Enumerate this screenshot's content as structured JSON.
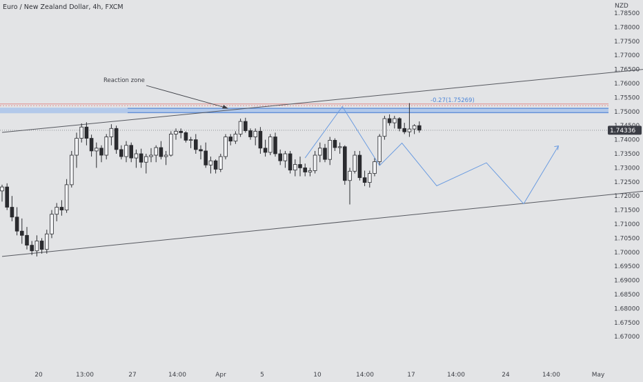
{
  "chart_title": "Euro / New Zealand Dollar, 4h, FXCM",
  "currency": "NZD",
  "colors": {
    "background": "#e3e4e6",
    "candle": "#2a2b2f",
    "zone_fill": "#aac4ea",
    "zone_edge": "#4a7fd1",
    "projection": "#6a9be0",
    "fib_label": "#4e86d8",
    "red_line": "#e07a7a",
    "price_box": "#3b3d45",
    "trendline": "#55575e"
  },
  "chart_data": {
    "type": "candlestick",
    "title": "Euro / New Zealand Dollar, 4h, FXCM",
    "y_axis": {
      "unit": "NZD",
      "range": [
        1.665,
        1.7875
      ],
      "ticks": [
        "1.78500",
        "1.78000",
        "1.77500",
        "1.77000",
        "1.76500",
        "1.76000",
        "1.75500",
        "1.75000",
        "1.74500",
        "1.74000",
        "1.73500",
        "1.73000",
        "1.72500",
        "1.72000",
        "1.71500",
        "1.71000",
        "1.70500",
        "1.70000",
        "1.69500",
        "1.69000",
        "1.68500",
        "1.68000",
        "1.67500",
        "1.67000"
      ]
    },
    "x_axis": {
      "ticks": [
        "20",
        "13:00",
        "27",
        "14:00",
        "Apr",
        "5",
        "10",
        "14:00",
        "17",
        "14:00",
        "24",
        "14:00",
        "May"
      ]
    },
    "current_price": "1.74336",
    "annotations": {
      "reaction_zone_label": "Reaction zone",
      "fib_label": "-0.27(1.75269)"
    },
    "reaction_zone": {
      "low": 1.7494,
      "high": 1.7514
    },
    "red_lines": [
      1.75269,
      1.7521
    ],
    "channel_lower": {
      "from": [
        0,
        1.6985
      ],
      "to": [
        132,
        1.7222
      ]
    },
    "channel_upper": {
      "from": [
        0,
        1.7426
      ],
      "to": [
        132,
        1.7655
      ]
    },
    "projection_path": [
      [
        61,
        1.7335
      ],
      [
        68.5,
        1.7518
      ],
      [
        76,
        1.7308
      ],
      [
        80.5,
        1.7388
      ],
      [
        87.5,
        1.7236
      ],
      [
        97.5,
        1.7318
      ],
      [
        105,
        1.7172
      ],
      [
        112,
        1.7378
      ]
    ],
    "candles": [
      {
        "o": 1.7218,
        "h": 1.724,
        "l": 1.718,
        "c": 1.7232
      },
      {
        "o": 1.7232,
        "h": 1.7245,
        "l": 1.715,
        "c": 1.716
      },
      {
        "o": 1.716,
        "h": 1.72,
        "l": 1.711,
        "c": 1.7125
      },
      {
        "o": 1.7125,
        "h": 1.716,
        "l": 1.706,
        "c": 1.7075
      },
      {
        "o": 1.7075,
        "h": 1.712,
        "l": 1.703,
        "c": 1.706
      },
      {
        "o": 1.706,
        "h": 1.709,
        "l": 1.701,
        "c": 1.7025
      },
      {
        "o": 1.7025,
        "h": 1.704,
        "l": 1.699,
        "c": 1.7005
      },
      {
        "o": 1.7005,
        "h": 1.706,
        "l": 1.6985,
        "c": 1.704
      },
      {
        "o": 1.704,
        "h": 1.705,
        "l": 1.6995,
        "c": 1.701
      },
      {
        "o": 1.701,
        "h": 1.708,
        "l": 1.6995,
        "c": 1.7065
      },
      {
        "o": 1.7065,
        "h": 1.715,
        "l": 1.705,
        "c": 1.7135
      },
      {
        "o": 1.7135,
        "h": 1.7175,
        "l": 1.711,
        "c": 1.716
      },
      {
        "o": 1.716,
        "h": 1.7185,
        "l": 1.713,
        "c": 1.715
      },
      {
        "o": 1.715,
        "h": 1.726,
        "l": 1.714,
        "c": 1.724
      },
      {
        "o": 1.724,
        "h": 1.736,
        "l": 1.723,
        "c": 1.7345
      },
      {
        "o": 1.7345,
        "h": 1.7425,
        "l": 1.73,
        "c": 1.7405
      },
      {
        "o": 1.7405,
        "h": 1.7458,
        "l": 1.739,
        "c": 1.7445
      },
      {
        "o": 1.7445,
        "h": 1.7462,
        "l": 1.738,
        "c": 1.7405
      },
      {
        "o": 1.7405,
        "h": 1.7418,
        "l": 1.734,
        "c": 1.736
      },
      {
        "o": 1.736,
        "h": 1.739,
        "l": 1.73,
        "c": 1.737
      },
      {
        "o": 1.737,
        "h": 1.738,
        "l": 1.732,
        "c": 1.7345
      },
      {
        "o": 1.7345,
        "h": 1.742,
        "l": 1.733,
        "c": 1.741
      },
      {
        "o": 1.741,
        "h": 1.7455,
        "l": 1.738,
        "c": 1.744
      },
      {
        "o": 1.744,
        "h": 1.745,
        "l": 1.735,
        "c": 1.7365
      },
      {
        "o": 1.7365,
        "h": 1.738,
        "l": 1.733,
        "c": 1.734
      },
      {
        "o": 1.734,
        "h": 1.7395,
        "l": 1.732,
        "c": 1.738
      },
      {
        "o": 1.738,
        "h": 1.739,
        "l": 1.732,
        "c": 1.7335
      },
      {
        "o": 1.7335,
        "h": 1.7365,
        "l": 1.73,
        "c": 1.735
      },
      {
        "o": 1.735,
        "h": 1.7368,
        "l": 1.73,
        "c": 1.732
      },
      {
        "o": 1.732,
        "h": 1.735,
        "l": 1.728,
        "c": 1.734
      },
      {
        "o": 1.734,
        "h": 1.737,
        "l": 1.732,
        "c": 1.7345
      },
      {
        "o": 1.7345,
        "h": 1.738,
        "l": 1.732,
        "c": 1.7372
      },
      {
        "o": 1.7372,
        "h": 1.7395,
        "l": 1.733,
        "c": 1.734
      },
      {
        "o": 1.734,
        "h": 1.736,
        "l": 1.731,
        "c": 1.7345
      },
      {
        "o": 1.7345,
        "h": 1.743,
        "l": 1.734,
        "c": 1.742
      },
      {
        "o": 1.742,
        "h": 1.744,
        "l": 1.74,
        "c": 1.743
      },
      {
        "o": 1.743,
        "h": 1.744,
        "l": 1.7405,
        "c": 1.7425
      },
      {
        "o": 1.7425,
        "h": 1.743,
        "l": 1.739,
        "c": 1.7398
      },
      {
        "o": 1.7398,
        "h": 1.741,
        "l": 1.737,
        "c": 1.74
      },
      {
        "o": 1.74,
        "h": 1.742,
        "l": 1.735,
        "c": 1.7365
      },
      {
        "o": 1.7365,
        "h": 1.738,
        "l": 1.733,
        "c": 1.736
      },
      {
        "o": 1.736,
        "h": 1.739,
        "l": 1.73,
        "c": 1.731
      },
      {
        "o": 1.731,
        "h": 1.734,
        "l": 1.728,
        "c": 1.7325
      },
      {
        "o": 1.7325,
        "h": 1.733,
        "l": 1.728,
        "c": 1.7295
      },
      {
        "o": 1.7295,
        "h": 1.735,
        "l": 1.7285,
        "c": 1.734
      },
      {
        "o": 1.734,
        "h": 1.742,
        "l": 1.733,
        "c": 1.741
      },
      {
        "o": 1.741,
        "h": 1.742,
        "l": 1.738,
        "c": 1.7395
      },
      {
        "o": 1.7395,
        "h": 1.743,
        "l": 1.7385,
        "c": 1.742
      },
      {
        "o": 1.742,
        "h": 1.7475,
        "l": 1.741,
        "c": 1.7465
      },
      {
        "o": 1.7465,
        "h": 1.7478,
        "l": 1.7425,
        "c": 1.7432
      },
      {
        "o": 1.7432,
        "h": 1.744,
        "l": 1.74,
        "c": 1.741
      },
      {
        "o": 1.741,
        "h": 1.744,
        "l": 1.738,
        "c": 1.743
      },
      {
        "o": 1.743,
        "h": 1.7445,
        "l": 1.735,
        "c": 1.737
      },
      {
        "o": 1.737,
        "h": 1.74,
        "l": 1.734,
        "c": 1.7355
      },
      {
        "o": 1.7355,
        "h": 1.742,
        "l": 1.7345,
        "c": 1.741
      },
      {
        "o": 1.741,
        "h": 1.7425,
        "l": 1.734,
        "c": 1.735
      },
      {
        "o": 1.735,
        "h": 1.7365,
        "l": 1.731,
        "c": 1.7325
      },
      {
        "o": 1.7325,
        "h": 1.736,
        "l": 1.73,
        "c": 1.735
      },
      {
        "o": 1.735,
        "h": 1.736,
        "l": 1.728,
        "c": 1.7292
      },
      {
        "o": 1.7292,
        "h": 1.733,
        "l": 1.727,
        "c": 1.7312
      },
      {
        "o": 1.7312,
        "h": 1.734,
        "l": 1.727,
        "c": 1.73
      },
      {
        "o": 1.73,
        "h": 1.7315,
        "l": 1.727,
        "c": 1.7285
      },
      {
        "o": 1.7285,
        "h": 1.73,
        "l": 1.727,
        "c": 1.729
      },
      {
        "o": 1.729,
        "h": 1.736,
        "l": 1.728,
        "c": 1.7345
      },
      {
        "o": 1.7345,
        "h": 1.739,
        "l": 1.732,
        "c": 1.737
      },
      {
        "o": 1.737,
        "h": 1.7385,
        "l": 1.732,
        "c": 1.733
      },
      {
        "o": 1.733,
        "h": 1.741,
        "l": 1.731,
        "c": 1.7398
      },
      {
        "o": 1.7398,
        "h": 1.7405,
        "l": 1.736,
        "c": 1.7372
      },
      {
        "o": 1.7372,
        "h": 1.739,
        "l": 1.735,
        "c": 1.7375
      },
      {
        "o": 1.7375,
        "h": 1.738,
        "l": 1.724,
        "c": 1.7255
      },
      {
        "o": 1.7255,
        "h": 1.73,
        "l": 1.717,
        "c": 1.7288
      },
      {
        "o": 1.7288,
        "h": 1.736,
        "l": 1.728,
        "c": 1.7345
      },
      {
        "o": 1.7345,
        "h": 1.736,
        "l": 1.7255,
        "c": 1.7265
      },
      {
        "o": 1.7265,
        "h": 1.729,
        "l": 1.7235,
        "c": 1.7248
      },
      {
        "o": 1.7248,
        "h": 1.729,
        "l": 1.723,
        "c": 1.728
      },
      {
        "o": 1.728,
        "h": 1.7335,
        "l": 1.727,
        "c": 1.7322
      },
      {
        "o": 1.7322,
        "h": 1.742,
        "l": 1.731,
        "c": 1.7412
      },
      {
        "o": 1.7412,
        "h": 1.7485,
        "l": 1.74,
        "c": 1.7475
      },
      {
        "o": 1.7475,
        "h": 1.749,
        "l": 1.745,
        "c": 1.746
      },
      {
        "o": 1.746,
        "h": 1.7485,
        "l": 1.744,
        "c": 1.7475
      },
      {
        "o": 1.7475,
        "h": 1.748,
        "l": 1.743,
        "c": 1.744
      },
      {
        "o": 1.744,
        "h": 1.746,
        "l": 1.742,
        "c": 1.7428
      },
      {
        "o": 1.7428,
        "h": 1.753,
        "l": 1.741,
        "c": 1.7438
      },
      {
        "o": 1.7438,
        "h": 1.7455,
        "l": 1.742,
        "c": 1.745
      },
      {
        "o": 1.745,
        "h": 1.7465,
        "l": 1.7425,
        "c": 1.7434
      }
    ]
  }
}
